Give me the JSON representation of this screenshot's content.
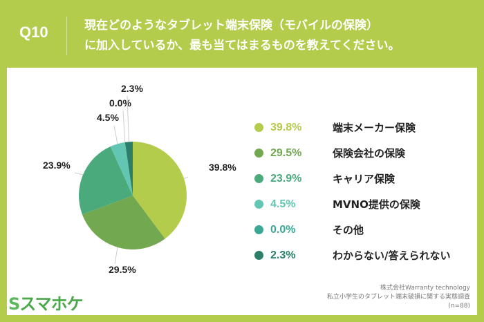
{
  "header": {
    "question_number": "Q10",
    "question_line1": "現在どのようなタブレット端末保険（モバイルの保険）",
    "question_line2": "に加入しているか、最も当てはまるものを教えてください。"
  },
  "chart_data": {
    "type": "pie",
    "title": "現在どのようなタブレット端末保険（モバイルの保険）に加入しているか、最も当てはまるものを教えてください。",
    "categories": [
      "端末メーカー保険",
      "保険会社の保険",
      "キャリア保険",
      "MVNO提供の保険",
      "その他",
      "わからない/答えられない"
    ],
    "values": [
      39.8,
      29.5,
      23.9,
      4.5,
      0.0,
      2.3
    ],
    "labels": [
      "39.8%",
      "29.5%",
      "23.9%",
      "4.5%",
      "0.0%",
      "2.3%"
    ],
    "colors": [
      "#b3cc4b",
      "#72a84f",
      "#4aaa7c",
      "#63c6b2",
      "#3aa894",
      "#2d7e68"
    ],
    "legend_position": "right"
  },
  "footer": {
    "logo": "スマホケ",
    "logo_mark": "S",
    "source_line1": "株式会社Warranty technology",
    "source_line2": "私立小学生のタブレット端末破損に関する実態調査",
    "source_line3": "(n=88)"
  }
}
